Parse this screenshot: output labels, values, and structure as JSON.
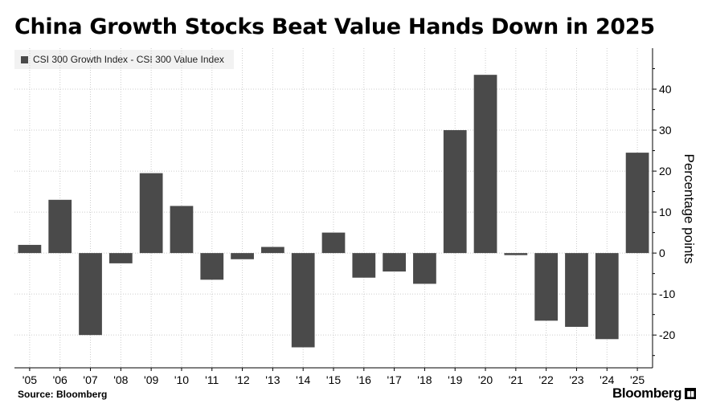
{
  "title": "China Growth Stocks Beat Value Hands Down in 2025",
  "source": "Source: Bloomberg",
  "brand": "Bloomberg",
  "colors": {
    "bar": "#4a4a4a",
    "grid": "#cccccc",
    "legend_bg": "#f2f2f2"
  },
  "chart_data": {
    "type": "bar",
    "categories": [
      "'05",
      "'06",
      "'07",
      "'08",
      "'09",
      "'10",
      "'11",
      "'12",
      "'13",
      "'14",
      "'15",
      "'16",
      "'17",
      "'18",
      "'19",
      "'20",
      "'21",
      "'22",
      "'23",
      "'24",
      "'25"
    ],
    "series": [
      {
        "name": "CSI 300 Growth Index - CSI 300 Value Index",
        "values": [
          2,
          13,
          -20,
          -2.5,
          19.5,
          11.5,
          -6.5,
          -1.5,
          1.5,
          -23,
          5,
          -6,
          -4.5,
          -7.5,
          30,
          43.5,
          -0.5,
          -16.5,
          -18,
          -21,
          24.5
        ]
      }
    ],
    "xlabel": "",
    "ylabel": "Percentage points",
    "ylim": [
      -28,
      50
    ],
    "yticks": [
      -20,
      -10,
      0,
      10,
      20,
      30,
      40
    ],
    "ytick_labels": [
      "-20",
      "-10",
      "0",
      "10",
      "20",
      "30",
      "40"
    ],
    "grid": true,
    "legend": "top-left"
  }
}
